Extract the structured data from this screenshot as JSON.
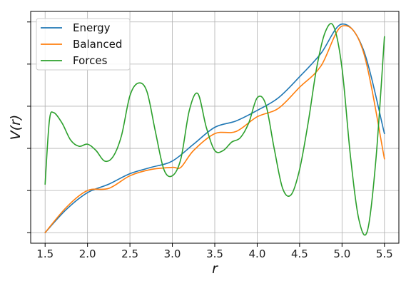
{
  "chart_data": {
    "type": "line",
    "xlabel": "r",
    "ylabel": "V(r)",
    "xlim": [
      1.33,
      5.67
    ],
    "ylim": [
      -0.05,
      1.05
    ],
    "x_ticks": [
      "1.5",
      "2.0",
      "2.5",
      "3.0",
      "3.5",
      "4.0",
      "4.5",
      "5.0",
      "5.5"
    ],
    "y_tick_values": [
      0.0,
      0.2,
      0.4,
      0.6,
      0.8,
      1.0
    ],
    "y_tick_labels_shown": false,
    "grid": true,
    "legend_position": "top-left",
    "series": [
      {
        "name": "Energy",
        "color": "#1f77b4",
        "x": [
          1.5,
          1.75,
          2.0,
          2.25,
          2.5,
          2.75,
          3.0,
          3.25,
          3.5,
          3.75,
          4.0,
          4.25,
          4.5,
          4.75,
          5.0,
          5.25,
          5.5
        ],
        "y": [
          0.0,
          0.11,
          0.19,
          0.23,
          0.28,
          0.31,
          0.34,
          0.42,
          0.5,
          0.53,
          0.58,
          0.64,
          0.74,
          0.85,
          0.99,
          0.87,
          0.47
        ]
      },
      {
        "name": "Balanced",
        "color": "#ff7f0e",
        "x": [
          1.5,
          1.75,
          2.0,
          2.25,
          2.5,
          2.75,
          3.0,
          3.1,
          3.25,
          3.5,
          3.75,
          4.0,
          4.25,
          4.5,
          4.75,
          5.0,
          5.25,
          5.5
        ],
        "y": [
          0.0,
          0.12,
          0.2,
          0.21,
          0.27,
          0.3,
          0.31,
          0.31,
          0.39,
          0.47,
          0.48,
          0.55,
          0.59,
          0.69,
          0.79,
          0.98,
          0.86,
          0.35
        ]
      },
      {
        "name": "Forces",
        "color": "#2ca02c",
        "x": [
          1.5,
          1.55,
          1.6,
          1.7,
          1.8,
          1.9,
          2.0,
          2.1,
          2.2,
          2.3,
          2.4,
          2.5,
          2.6,
          2.7,
          2.8,
          2.9,
          3.0,
          3.1,
          3.2,
          3.3,
          3.4,
          3.5,
          3.6,
          3.7,
          3.8,
          3.9,
          4.0,
          4.1,
          4.2,
          4.3,
          4.4,
          4.5,
          4.6,
          4.7,
          4.8,
          4.9,
          5.0,
          5.1,
          5.2,
          5.3,
          5.4,
          5.5
        ],
        "y": [
          0.23,
          0.53,
          0.57,
          0.52,
          0.44,
          0.41,
          0.42,
          0.39,
          0.34,
          0.36,
          0.46,
          0.65,
          0.71,
          0.67,
          0.48,
          0.3,
          0.27,
          0.35,
          0.58,
          0.66,
          0.5,
          0.39,
          0.39,
          0.43,
          0.45,
          0.52,
          0.64,
          0.61,
          0.4,
          0.21,
          0.18,
          0.3,
          0.52,
          0.78,
          0.95,
          0.98,
          0.78,
          0.36,
          0.06,
          0.01,
          0.35,
          0.93
        ]
      }
    ]
  }
}
